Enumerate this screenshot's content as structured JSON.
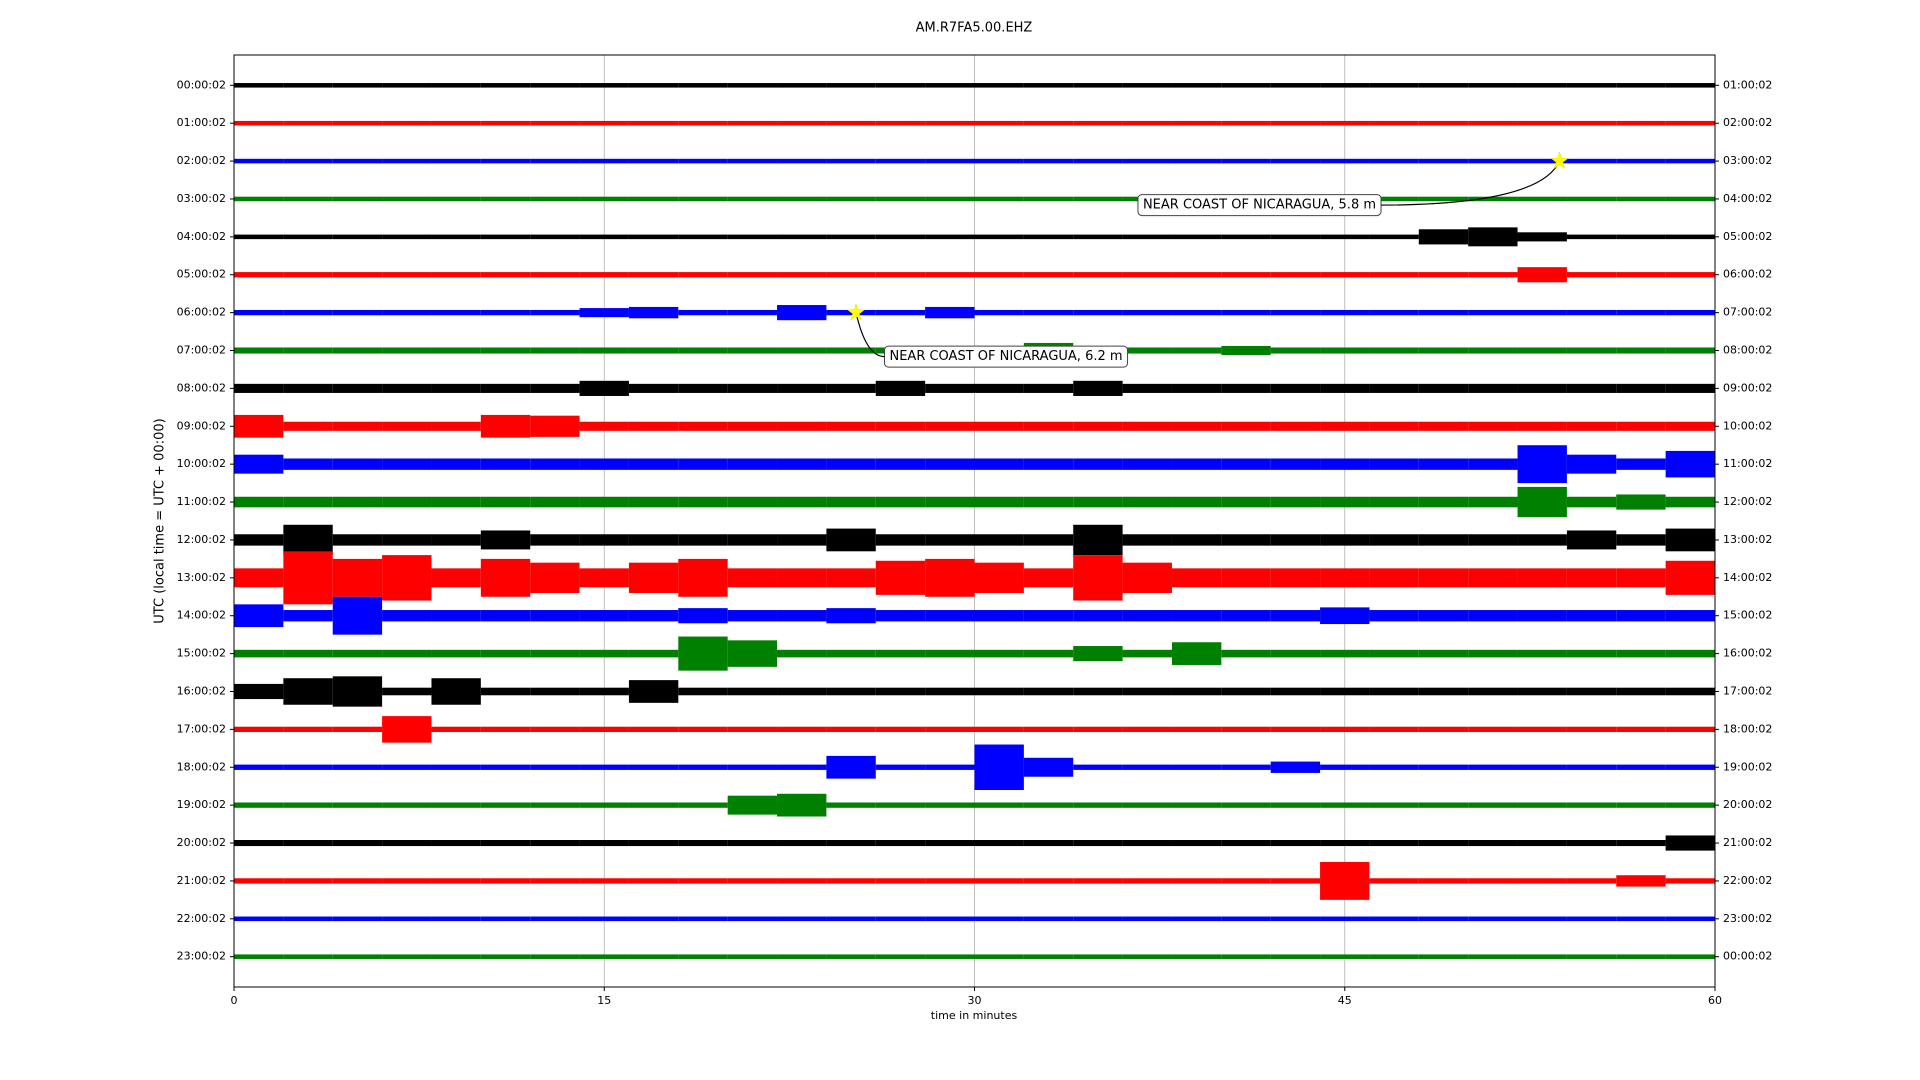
{
  "chart_data": {
    "type": "helicorder",
    "title": "AM.R7FA5.00.EHZ",
    "xlabel": "time in minutes",
    "ylabel": "UTC (local time = UTC + 00:00)",
    "xlim": [
      0,
      60
    ],
    "xticks": [
      0,
      15,
      30,
      45,
      60
    ],
    "grid": true,
    "left_labels": [
      "00:00:02",
      "01:00:02",
      "02:00:02",
      "03:00:02",
      "04:00:02",
      "05:00:02",
      "06:00:02",
      "07:00:02",
      "08:00:02",
      "09:00:02",
      "10:00:02",
      "11:00:02",
      "12:00:02",
      "13:00:02",
      "14:00:02",
      "15:00:02",
      "16:00:02",
      "17:00:02",
      "18:00:02",
      "19:00:02",
      "20:00:02",
      "21:00:02",
      "22:00:02",
      "23:00:02"
    ],
    "right_labels": [
      "01:00:02",
      "02:00:02",
      "03:00:02",
      "04:00:02",
      "05:00:02",
      "06:00:02",
      "07:00:02",
      "08:00:02",
      "09:00:02",
      "10:00:02",
      "11:00:02",
      "12:00:02",
      "13:00:02",
      "14:00:02",
      "15:00:02",
      "16:00:02",
      "17:00:02",
      "18:00:02",
      "19:00:02",
      "20:00:02",
      "21:00:02",
      "22:00:02",
      "23:00:02",
      "00:00:02"
    ],
    "x": [
      1,
      3,
      5,
      7,
      9,
      11,
      13,
      15,
      17,
      19,
      21,
      23,
      25,
      27,
      29,
      31,
      33,
      35,
      37,
      39,
      41,
      43,
      45,
      47,
      49,
      51,
      53,
      55,
      57,
      59
    ],
    "series": [
      {
        "color": "#000000",
        "values": [
          0.06,
          0.06,
          0.06,
          0.06,
          0.06,
          0.06,
          0.06,
          0.06,
          0.06,
          0.06,
          0.06,
          0.06,
          0.06,
          0.06,
          0.06,
          0.06,
          0.06,
          0.06,
          0.06,
          0.06,
          0.06,
          0.06,
          0.06,
          0.06,
          0.06,
          0.06,
          0.06,
          0.06,
          0.06,
          0.06
        ]
      },
      {
        "color": "#ff0000",
        "values": [
          0.06,
          0.06,
          0.06,
          0.06,
          0.06,
          0.06,
          0.06,
          0.06,
          0.06,
          0.06,
          0.06,
          0.06,
          0.06,
          0.06,
          0.06,
          0.06,
          0.06,
          0.06,
          0.06,
          0.06,
          0.06,
          0.06,
          0.06,
          0.06,
          0.06,
          0.06,
          0.06,
          0.06,
          0.06,
          0.06
        ]
      },
      {
        "color": "#0000ff",
        "values": [
          0.06,
          0.06,
          0.06,
          0.06,
          0.06,
          0.06,
          0.06,
          0.06,
          0.06,
          0.06,
          0.06,
          0.06,
          0.06,
          0.06,
          0.06,
          0.06,
          0.06,
          0.06,
          0.06,
          0.06,
          0.06,
          0.06,
          0.06,
          0.06,
          0.06,
          0.06,
          0.06,
          0.06,
          0.06,
          0.06
        ]
      },
      {
        "color": "#008000",
        "values": [
          0.06,
          0.06,
          0.06,
          0.06,
          0.06,
          0.06,
          0.06,
          0.06,
          0.06,
          0.06,
          0.06,
          0.06,
          0.06,
          0.06,
          0.06,
          0.06,
          0.06,
          0.06,
          0.06,
          0.06,
          0.06,
          0.06,
          0.06,
          0.06,
          0.06,
          0.06,
          0.06,
          0.06,
          0.06,
          0.06
        ]
      },
      {
        "color": "#000000",
        "values": [
          0.06,
          0.06,
          0.06,
          0.06,
          0.06,
          0.06,
          0.06,
          0.06,
          0.06,
          0.06,
          0.06,
          0.06,
          0.06,
          0.06,
          0.06,
          0.06,
          0.06,
          0.06,
          0.06,
          0.06,
          0.06,
          0.06,
          0.06,
          0.06,
          0.2,
          0.25,
          0.12,
          0.06,
          0.06,
          0.06
        ]
      },
      {
        "color": "#ff0000",
        "values": [
          0.07,
          0.07,
          0.07,
          0.07,
          0.07,
          0.07,
          0.07,
          0.07,
          0.07,
          0.07,
          0.07,
          0.07,
          0.07,
          0.07,
          0.07,
          0.07,
          0.07,
          0.07,
          0.07,
          0.07,
          0.07,
          0.07,
          0.07,
          0.07,
          0.07,
          0.07,
          0.2,
          0.07,
          0.07,
          0.07
        ]
      },
      {
        "color": "#0000ff",
        "values": [
          0.07,
          0.07,
          0.07,
          0.07,
          0.07,
          0.07,
          0.07,
          0.12,
          0.15,
          0.07,
          0.07,
          0.2,
          0.07,
          0.07,
          0.15,
          0.07,
          0.07,
          0.07,
          0.07,
          0.07,
          0.07,
          0.07,
          0.07,
          0.07,
          0.07,
          0.07,
          0.07,
          0.07,
          0.07,
          0.07
        ]
      },
      {
        "color": "#008000",
        "values": [
          0.08,
          0.08,
          0.08,
          0.08,
          0.08,
          0.08,
          0.08,
          0.08,
          0.08,
          0.08,
          0.08,
          0.08,
          0.08,
          0.08,
          0.08,
          0.08,
          0.2,
          0.08,
          0.08,
          0.08,
          0.12,
          0.08,
          0.08,
          0.08,
          0.08,
          0.08,
          0.08,
          0.08,
          0.08,
          0.08
        ]
      },
      {
        "color": "#000000",
        "values": [
          0.12,
          0.12,
          0.12,
          0.12,
          0.12,
          0.12,
          0.12,
          0.2,
          0.12,
          0.12,
          0.12,
          0.12,
          0.12,
          0.2,
          0.12,
          0.12,
          0.12,
          0.2,
          0.12,
          0.12,
          0.12,
          0.12,
          0.12,
          0.12,
          0.12,
          0.12,
          0.12,
          0.12,
          0.12,
          0.12
        ]
      },
      {
        "color": "#ff0000",
        "values": [
          0.3,
          0.12,
          0.12,
          0.12,
          0.12,
          0.3,
          0.28,
          0.12,
          0.12,
          0.12,
          0.12,
          0.12,
          0.12,
          0.12,
          0.12,
          0.12,
          0.12,
          0.12,
          0.12,
          0.12,
          0.12,
          0.12,
          0.12,
          0.12,
          0.12,
          0.12,
          0.12,
          0.12,
          0.12,
          0.12
        ]
      },
      {
        "color": "#0000ff",
        "values": [
          0.25,
          0.15,
          0.15,
          0.15,
          0.15,
          0.15,
          0.15,
          0.15,
          0.15,
          0.15,
          0.15,
          0.15,
          0.15,
          0.15,
          0.15,
          0.15,
          0.15,
          0.15,
          0.15,
          0.15,
          0.15,
          0.15,
          0.15,
          0.15,
          0.15,
          0.15,
          0.5,
          0.25,
          0.15,
          0.35
        ]
      },
      {
        "color": "#008000",
        "values": [
          0.14,
          0.14,
          0.14,
          0.14,
          0.14,
          0.14,
          0.14,
          0.14,
          0.14,
          0.14,
          0.14,
          0.14,
          0.14,
          0.14,
          0.14,
          0.14,
          0.14,
          0.14,
          0.14,
          0.14,
          0.14,
          0.14,
          0.14,
          0.14,
          0.14,
          0.14,
          0.4,
          0.14,
          0.2,
          0.14
        ]
      },
      {
        "color": "#000000",
        "values": [
          0.15,
          0.4,
          0.15,
          0.15,
          0.15,
          0.25,
          0.15,
          0.15,
          0.15,
          0.15,
          0.15,
          0.15,
          0.3,
          0.15,
          0.15,
          0.15,
          0.15,
          0.4,
          0.15,
          0.15,
          0.15,
          0.15,
          0.15,
          0.15,
          0.15,
          0.15,
          0.15,
          0.25,
          0.15,
          0.3
        ]
      },
      {
        "color": "#ff0000",
        "values": [
          0.25,
          0.7,
          0.5,
          0.6,
          0.25,
          0.5,
          0.4,
          0.25,
          0.4,
          0.5,
          0.25,
          0.25,
          0.25,
          0.45,
          0.5,
          0.4,
          0.25,
          0.6,
          0.4,
          0.25,
          0.25,
          0.25,
          0.25,
          0.25,
          0.25,
          0.25,
          0.25,
          0.25,
          0.25,
          0.45
        ]
      },
      {
        "color": "#0000ff",
        "values": [
          0.3,
          0.15,
          0.5,
          0.15,
          0.15,
          0.15,
          0.15,
          0.15,
          0.15,
          0.2,
          0.15,
          0.15,
          0.2,
          0.15,
          0.15,
          0.15,
          0.15,
          0.15,
          0.15,
          0.15,
          0.15,
          0.15,
          0.22,
          0.15,
          0.15,
          0.15,
          0.15,
          0.15,
          0.15,
          0.15
        ]
      },
      {
        "color": "#008000",
        "values": [
          0.1,
          0.1,
          0.1,
          0.1,
          0.1,
          0.1,
          0.1,
          0.1,
          0.1,
          0.45,
          0.35,
          0.1,
          0.1,
          0.1,
          0.1,
          0.1,
          0.1,
          0.2,
          0.1,
          0.3,
          0.1,
          0.1,
          0.1,
          0.1,
          0.1,
          0.1,
          0.1,
          0.1,
          0.1,
          0.1
        ]
      },
      {
        "color": "#000000",
        "values": [
          0.2,
          0.35,
          0.4,
          0.1,
          0.35,
          0.1,
          0.1,
          0.1,
          0.3,
          0.1,
          0.1,
          0.1,
          0.1,
          0.1,
          0.1,
          0.1,
          0.1,
          0.1,
          0.1,
          0.1,
          0.1,
          0.1,
          0.1,
          0.1,
          0.1,
          0.1,
          0.1,
          0.1,
          0.1,
          0.1
        ]
      },
      {
        "color": "#ff0000",
        "values": [
          0.07,
          0.07,
          0.07,
          0.35,
          0.07,
          0.07,
          0.07,
          0.07,
          0.07,
          0.07,
          0.07,
          0.07,
          0.07,
          0.07,
          0.07,
          0.07,
          0.07,
          0.07,
          0.07,
          0.07,
          0.07,
          0.07,
          0.07,
          0.07,
          0.07,
          0.07,
          0.07,
          0.07,
          0.07,
          0.07
        ]
      },
      {
        "color": "#0000ff",
        "values": [
          0.07,
          0.07,
          0.07,
          0.07,
          0.07,
          0.07,
          0.07,
          0.07,
          0.07,
          0.07,
          0.07,
          0.07,
          0.3,
          0.07,
          0.07,
          0.6,
          0.25,
          0.07,
          0.07,
          0.07,
          0.07,
          0.15,
          0.07,
          0.07,
          0.07,
          0.07,
          0.07,
          0.07,
          0.07,
          0.07
        ]
      },
      {
        "color": "#008000",
        "values": [
          0.07,
          0.07,
          0.07,
          0.07,
          0.07,
          0.07,
          0.07,
          0.07,
          0.07,
          0.07,
          0.25,
          0.3,
          0.07,
          0.07,
          0.07,
          0.07,
          0.07,
          0.07,
          0.07,
          0.07,
          0.07,
          0.07,
          0.07,
          0.07,
          0.07,
          0.07,
          0.07,
          0.07,
          0.07,
          0.07
        ]
      },
      {
        "color": "#000000",
        "values": [
          0.08,
          0.08,
          0.08,
          0.08,
          0.08,
          0.08,
          0.08,
          0.08,
          0.08,
          0.08,
          0.08,
          0.08,
          0.08,
          0.08,
          0.08,
          0.08,
          0.08,
          0.08,
          0.08,
          0.08,
          0.08,
          0.08,
          0.08,
          0.08,
          0.08,
          0.08,
          0.08,
          0.08,
          0.08,
          0.2
        ]
      },
      {
        "color": "#ff0000",
        "values": [
          0.07,
          0.07,
          0.07,
          0.07,
          0.07,
          0.07,
          0.07,
          0.07,
          0.07,
          0.07,
          0.07,
          0.07,
          0.07,
          0.07,
          0.07,
          0.07,
          0.07,
          0.07,
          0.07,
          0.07,
          0.07,
          0.07,
          0.5,
          0.07,
          0.07,
          0.07,
          0.07,
          0.07,
          0.15,
          0.07
        ]
      },
      {
        "color": "#0000ff",
        "values": [
          0.06,
          0.06,
          0.06,
          0.06,
          0.06,
          0.06,
          0.06,
          0.06,
          0.06,
          0.06,
          0.06,
          0.06,
          0.06,
          0.06,
          0.06,
          0.06,
          0.06,
          0.06,
          0.06,
          0.06,
          0.06,
          0.06,
          0.06,
          0.06,
          0.06,
          0.06,
          0.06,
          0.06,
          0.06,
          0.06
        ]
      },
      {
        "color": "#008000",
        "values": [
          0.06,
          0.06,
          0.06,
          0.06,
          0.06,
          0.06,
          0.06,
          0.06,
          0.06,
          0.06,
          0.06,
          0.06,
          0.06,
          0.06,
          0.06,
          0.06,
          0.06,
          0.06,
          0.06,
          0.06,
          0.06,
          0.06,
          0.06,
          0.06,
          0.06,
          0.06,
          0.06,
          0.06,
          0.06,
          0.06
        ]
      }
    ],
    "annotations": [
      {
        "text": "NEAR COAST OF NICARAGUA, 5.8 m",
        "x": 53.7,
        "row": 2
      },
      {
        "text": "NEAR COAST OF NICARAGUA, 6.2 m",
        "x": 25.2,
        "row": 6
      }
    ]
  }
}
